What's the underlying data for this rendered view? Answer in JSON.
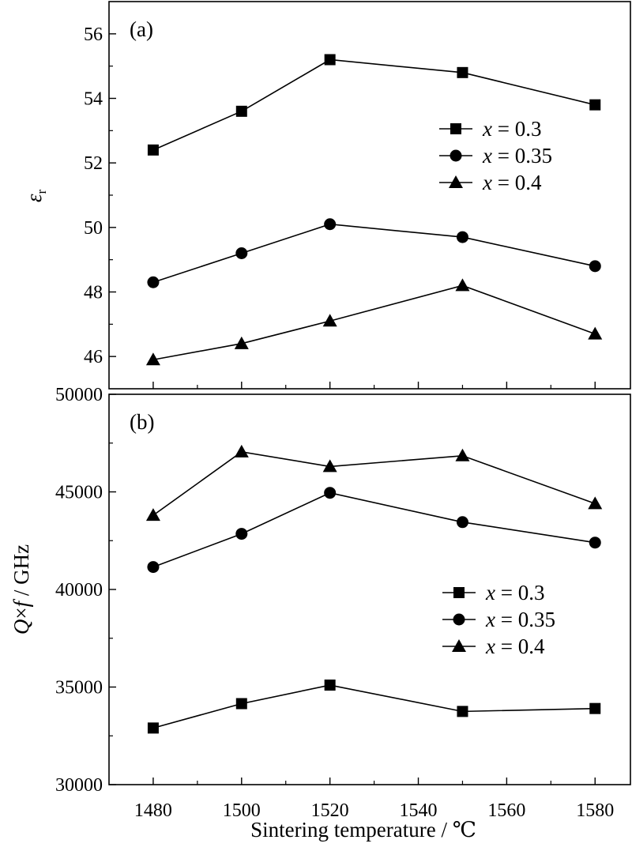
{
  "chart_data": [
    {
      "type": "line",
      "panel_label": "(a)",
      "ylabel": "εr",
      "xlabel": "",
      "x": [
        1480,
        1500,
        1520,
        1550,
        1580
      ],
      "xlim": [
        1470,
        1588
      ],
      "ylim": [
        45,
        57
      ],
      "y_ticks": [
        46,
        48,
        50,
        52,
        54,
        56
      ],
      "series": [
        {
          "name": "x = 0.3",
          "marker": "square",
          "values": [
            52.4,
            53.6,
            55.2,
            54.8,
            53.8
          ]
        },
        {
          "name": "x = 0.35",
          "marker": "circle",
          "values": [
            48.3,
            49.2,
            50.1,
            49.7,
            48.8
          ]
        },
        {
          "name": "x = 0.4",
          "marker": "triangle",
          "values": [
            45.9,
            46.4,
            47.1,
            48.2,
            46.7
          ]
        }
      ],
      "legend_position": "right",
      "grid": false
    },
    {
      "type": "line",
      "panel_label": "(b)",
      "ylabel": "Q×f / GHz",
      "xlabel": "Sintering temperature / ℃",
      "x": [
        1480,
        1500,
        1520,
        1550,
        1580
      ],
      "x_ticks": [
        1480,
        1500,
        1520,
        1540,
        1560,
        1580
      ],
      "xlim": [
        1470,
        1588
      ],
      "ylim": [
        30000,
        50000
      ],
      "y_ticks": [
        30000,
        35000,
        40000,
        45000,
        50000
      ],
      "series": [
        {
          "name": "x = 0.3",
          "marker": "square",
          "values": [
            32900,
            34150,
            35100,
            33750,
            33900
          ]
        },
        {
          "name": "x = 0.35",
          "marker": "circle",
          "values": [
            41150,
            42850,
            44950,
            43450,
            42400
          ]
        },
        {
          "name": "x = 0.4",
          "marker": "triangle",
          "values": [
            43800,
            47050,
            46300,
            46850,
            44400
          ]
        }
      ],
      "legend_position": "right",
      "grid": false
    }
  ]
}
